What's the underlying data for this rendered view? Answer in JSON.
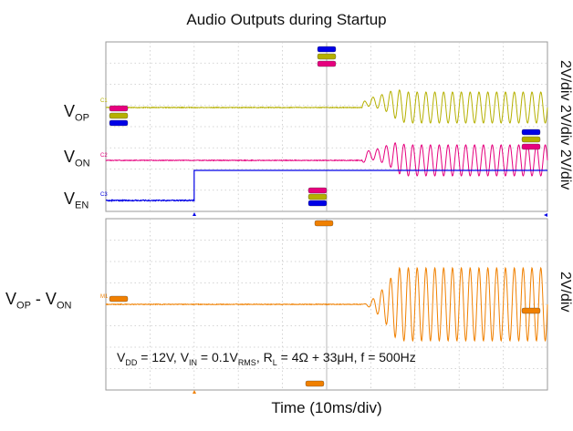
{
  "chart_data": [
    {
      "type": "line",
      "panel": "top",
      "title": "Audio Outputs during Startup",
      "xlabel": "Time (10ms/div)",
      "x_unit": "ms",
      "xlim": [
        0,
        100
      ],
      "grid": true,
      "right_label": "2V/div 2V/div 2V/div",
      "series": [
        {
          "name": "V_OP",
          "name_main": "V",
          "name_sub": "OP",
          "color": "#b5b000",
          "channel": "C1",
          "scale": "2V/div",
          "behavior": "flat until ~58ms, startup ripple 58–64ms, then ~500Hz sinusoid"
        },
        {
          "name": "V_ON",
          "name_main": "V",
          "name_sub": "ON",
          "color": "#e6007e",
          "channel": "C2",
          "scale": "2V/div",
          "behavior": "flat until ~58ms, startup ripple 58–64ms, then ~500Hz sinusoid (inverted)"
        },
        {
          "name": "V_EN",
          "name_main": "V",
          "name_sub": "EN",
          "color": "#0000e6",
          "channel": "C3",
          "scale": "2V/div",
          "step": {
            "x": 20,
            "low": 0,
            "high": 1
          }
        }
      ]
    },
    {
      "type": "line",
      "panel": "bottom",
      "xlabel": "Time (10ms/div)",
      "x_unit": "ms",
      "xlim": [
        0,
        100
      ],
      "grid": true,
      "right_label": "2V/div",
      "series": [
        {
          "name": "V_OP - V_ON",
          "color": "#f08000",
          "channel": "M1",
          "scale": "2V/div",
          "behavior": "flat until ~58ms, growing envelope 58–66ms, then ~500Hz sinusoid"
        }
      ],
      "annotation": {
        "VDD": "12V",
        "VIN": "0.1V",
        "RL": "4Ω + 33μH",
        "f": "500Hz"
      }
    }
  ],
  "labels": {
    "title": "Audio Outputs during Startup",
    "xlabel": "Time (10ms/div)",
    "right_top": "2V/div 2V/div 2V/div",
    "right_bottom": "2V/div",
    "vop_main": "V",
    "vop_sub": "OP",
    "von_main": "V",
    "von_sub": "ON",
    "ven_main": "V",
    "ven_sub": "EN",
    "diff_op_main": "V",
    "diff_op_sub": "OP",
    "diff_minus": " - ",
    "diff_on_main": "V",
    "diff_on_sub": "ON",
    "ann_vdd": "V",
    "ann_vdd_sub": "DD",
    "ann_vdd_val": " = 12V, ",
    "ann_vin": "V",
    "ann_vin_sub": "IN",
    "ann_vin_val": " = 0.1V",
    "ann_rms_sub": "RMS",
    "ann_rl_sep": ", ",
    "ann_rl": "R",
    "ann_rl_sub": "L",
    "ann_rl_val": " = 4Ω + 33μH, f = 500Hz"
  },
  "colors": {
    "vop": "#b5b000",
    "von": "#e6007e",
    "ven": "#0000e6",
    "diff": "#f08000",
    "cursor": "#b8b8b8"
  }
}
